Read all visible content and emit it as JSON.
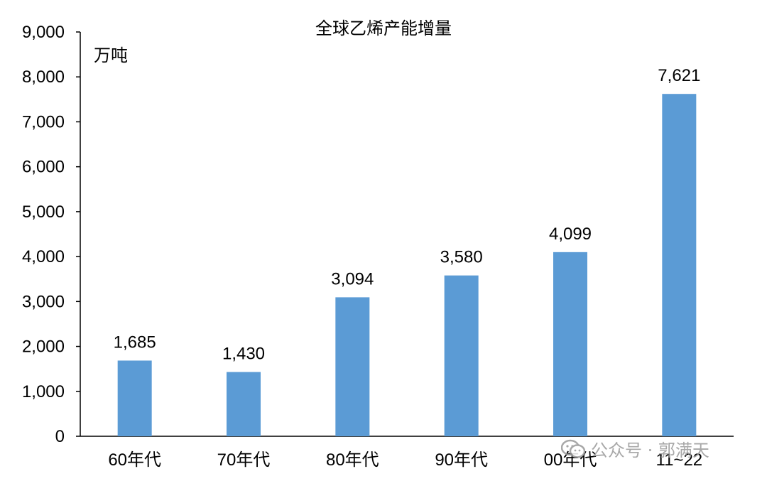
{
  "chart_data": {
    "type": "bar",
    "title": "全球乙烯产能增量",
    "unit_label": "万吨",
    "categories": [
      "60年代",
      "70年代",
      "80年代",
      "90年代",
      "00年代",
      "11~22"
    ],
    "values": [
      1685,
      1430,
      3094,
      3580,
      4099,
      7621
    ],
    "value_labels": [
      "1,685",
      "1,430",
      "3,094",
      "3,580",
      "4,099",
      "7,621"
    ],
    "ylim": [
      0,
      9000
    ],
    "yticks": [
      0,
      1000,
      2000,
      3000,
      4000,
      5000,
      6000,
      7000,
      8000,
      9000
    ],
    "ytick_labels": [
      "0",
      "1,000",
      "2,000",
      "3,000",
      "4,000",
      "5,000",
      "6,000",
      "7,000",
      "8,000",
      "9,000"
    ],
    "grid": false,
    "legend": "none",
    "bar_color": "#5b9bd5",
    "axis_color": "#000000"
  },
  "watermark": {
    "icon": "wechat-icon",
    "text": "公众号 · 郭满天"
  }
}
